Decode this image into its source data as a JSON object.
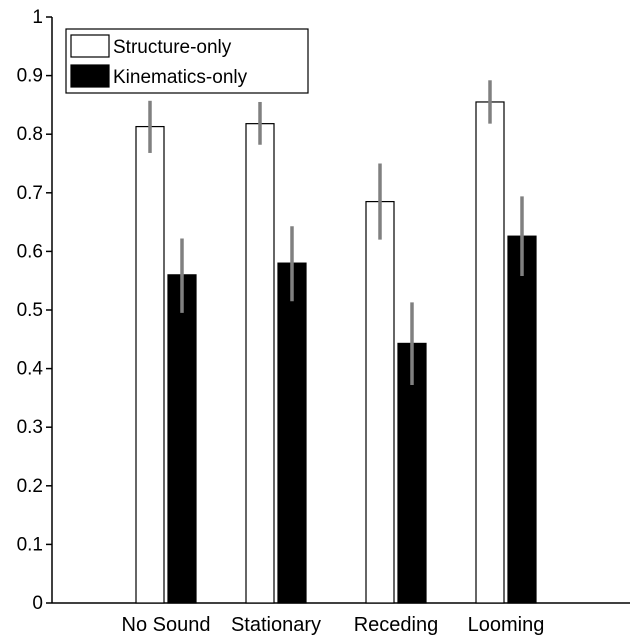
{
  "chart_data": {
    "type": "bar",
    "categories": [
      "No Sound",
      "Stationary",
      "Receding",
      "Looming"
    ],
    "series": [
      {
        "name": "Structure-only",
        "values": [
          0.813,
          0.818,
          0.685,
          0.855
        ],
        "error_low": [
          0.768,
          0.782,
          0.62,
          0.818
        ],
        "error_high": [
          0.857,
          0.855,
          0.75,
          0.892
        ],
        "fill": "#ffffff",
        "stroke": "#000000"
      },
      {
        "name": "Kinematics-only",
        "values": [
          0.56,
          0.58,
          0.443,
          0.626
        ],
        "error_low": [
          0.495,
          0.515,
          0.372,
          0.558
        ],
        "error_high": [
          0.622,
          0.643,
          0.513,
          0.694
        ],
        "fill": "#000000",
        "stroke": "#000000"
      }
    ],
    "yticks": [
      "0",
      "0.1",
      "0.2",
      "0.3",
      "0.4",
      "0.5",
      "0.6",
      "0.7",
      "0.8",
      "0.9",
      "1"
    ],
    "ylim": [
      0,
      1
    ],
    "error_bar_color": "#808080",
    "legend_position": "top-left",
    "grid": false
  }
}
